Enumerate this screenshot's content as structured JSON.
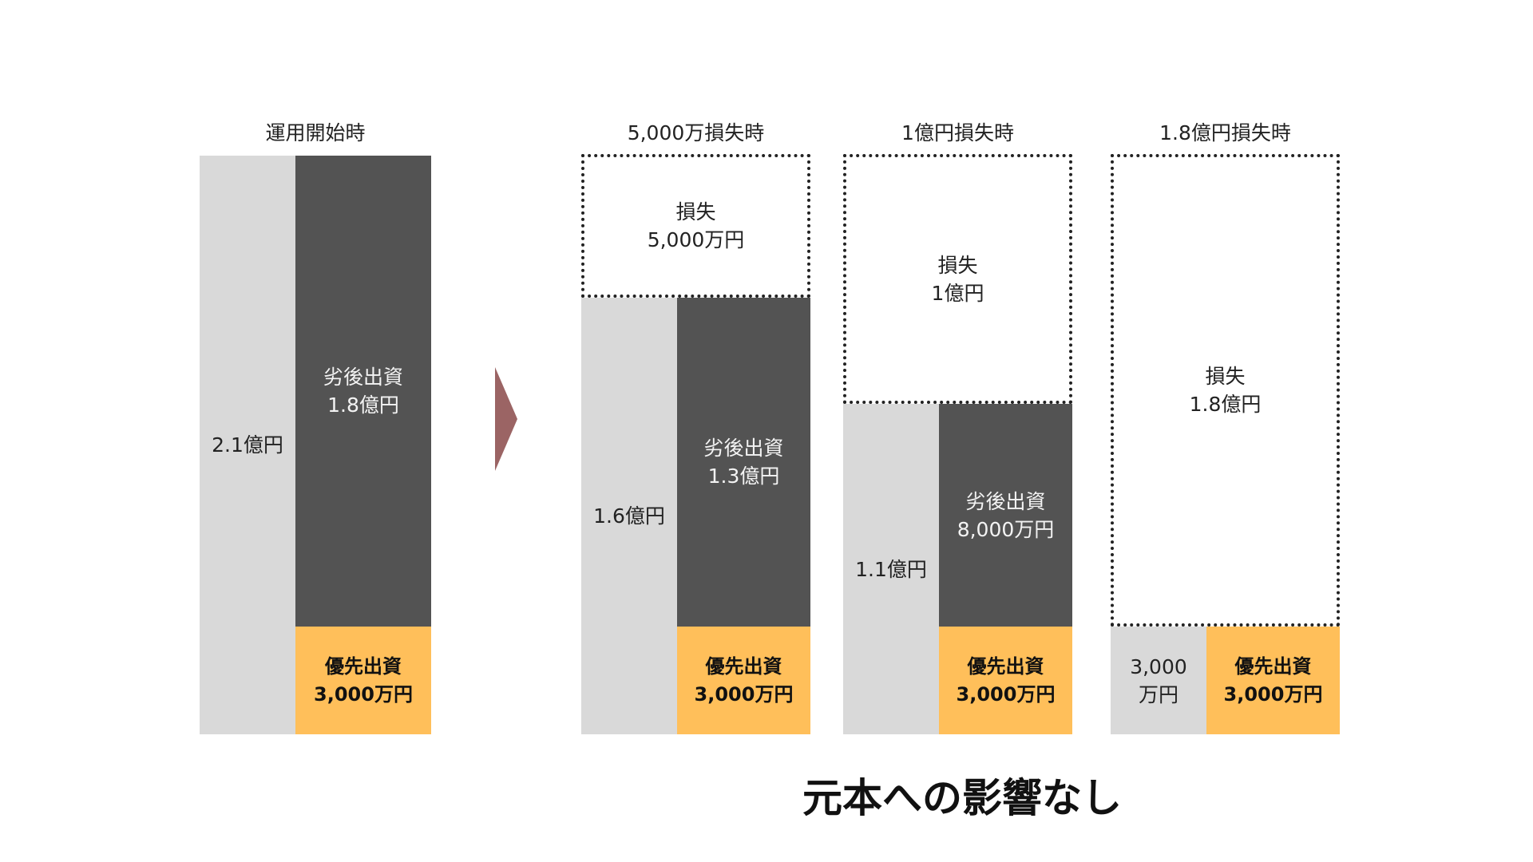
{
  "columns": {
    "start": {
      "title": "運用開始時",
      "total": "2.1億円",
      "junior": {
        "l1": "劣後出資",
        "l2": "1.8億円"
      },
      "senior": {
        "l1": "優先出資",
        "l2": "3,000万円"
      }
    },
    "loss5000": {
      "title": "5,000万損失時",
      "loss": {
        "l1": "損失",
        "l2": "5,000万円"
      },
      "total": "1.6億円",
      "junior": {
        "l1": "劣後出資",
        "l2": "1.3億円"
      },
      "senior": {
        "l1": "優先出資",
        "l2": "3,000万円"
      }
    },
    "loss1": {
      "title": "1億円損失時",
      "loss": {
        "l1": "損失",
        "l2": "1億円"
      },
      "total": "1.1億円",
      "junior": {
        "l1": "劣後出資",
        "l2": "8,000万円"
      },
      "senior": {
        "l1": "優先出資",
        "l2": "3,000万円"
      }
    },
    "loss18": {
      "title": "1.8億円損失時",
      "loss": {
        "l1": "損失",
        "l2": "1.8億円"
      },
      "total": {
        "l1": "3,000",
        "l2": "万円"
      },
      "senior": {
        "l1": "優先出資",
        "l2": "3,000万円"
      }
    }
  },
  "footer": "元本への影響なし",
  "colors": {
    "light": "#d9d9d9",
    "dark": "#535353",
    "senior": "#ffbf5a",
    "arrow": "#9b6464"
  },
  "icons": {
    "arrow": "right-triangle-arrow"
  }
}
